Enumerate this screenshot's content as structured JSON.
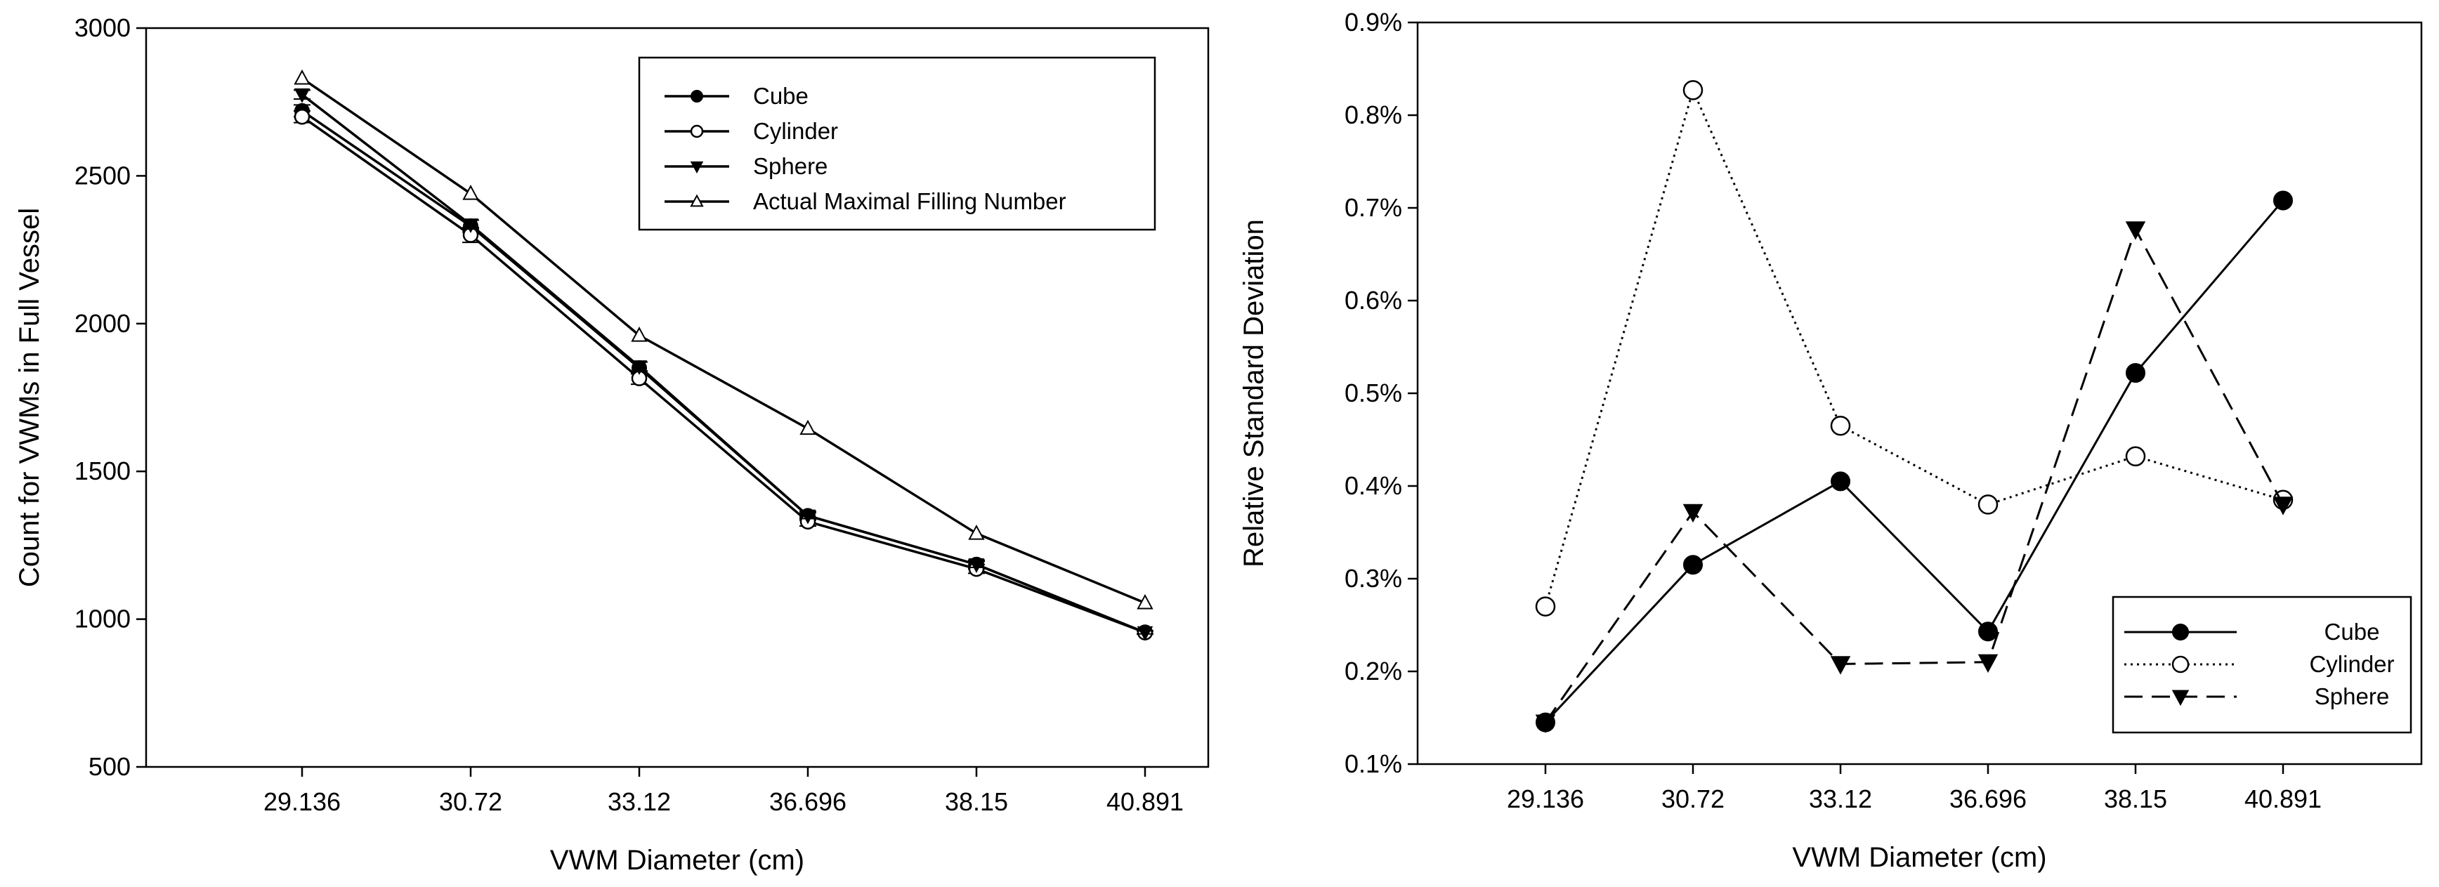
{
  "chart_data": [
    {
      "type": "line",
      "id": "count",
      "title": "",
      "xlabel": "VWM Diameter  (cm)",
      "ylabel": "Count for VWMs in Full Vessel",
      "categories": [
        "29.136",
        "30.72",
        "33.12",
        "36.696",
        "38.15",
        "40.891"
      ],
      "ylim": [
        500,
        3000
      ],
      "yticks": [
        500,
        1000,
        1500,
        2000,
        2500,
        3000
      ],
      "ytick_labels": [
        "500",
        "1000",
        "1500",
        "2000",
        "2500",
        "3000"
      ],
      "grid": false,
      "legend_position": "top-right",
      "series": [
        {
          "name": "Cube",
          "marker": "filled-circle",
          "dash": "solid",
          "values": [
            2720,
            2330,
            1850,
            1350,
            1185,
            955
          ],
          "errors": [
            20,
            20,
            20,
            15,
            15,
            5
          ]
        },
        {
          "name": "Cylinder",
          "marker": "open-circle",
          "dash": "solid",
          "values": [
            2700,
            2300,
            1815,
            1330,
            1170,
            955
          ],
          "errors": [
            20,
            25,
            20,
            15,
            15,
            5
          ]
        },
        {
          "name": "Sphere",
          "marker": "filled-triangle-down",
          "dash": "solid",
          "values": [
            2775,
            2335,
            1855,
            1350,
            1185,
            955
          ],
          "errors": [
            15,
            15,
            15,
            10,
            10,
            5
          ]
        },
        {
          "name": "Actual Maximal Filling Number",
          "marker": "open-triangle-up",
          "dash": "solid",
          "values": [
            2830,
            2440,
            1960,
            1645,
            1290,
            1055
          ],
          "errors": [
            0,
            0,
            0,
            0,
            0,
            0
          ]
        }
      ]
    },
    {
      "type": "line",
      "id": "rsd",
      "title": "",
      "xlabel": "VWM Diameter  (cm)",
      "ylabel": "Relative Standard Deviation",
      "categories": [
        "29.136",
        "30.72",
        "33.12",
        "36.696",
        "38.15",
        "40.891"
      ],
      "ylim": [
        0.1,
        0.9
      ],
      "yticks": [
        0.1,
        0.2,
        0.3,
        0.4,
        0.5,
        0.6,
        0.7,
        0.8,
        0.9
      ],
      "ytick_labels": [
        "0.1%",
        "0.2%",
        "0.3%",
        "0.4%",
        "0.5%",
        "0.6%",
        "0.7%",
        "0.8%",
        "0.9%"
      ],
      "grid": false,
      "legend_position": "bottom-right",
      "series": [
        {
          "name": "Cube",
          "marker": "filled-circle",
          "dash": "solid",
          "values": [
            0.145,
            0.315,
            0.405,
            0.243,
            0.522,
            0.708
          ]
        },
        {
          "name": "Cylinder",
          "marker": "open-circle",
          "dash": "dotted",
          "values": [
            0.27,
            0.827,
            0.465,
            0.38,
            0.432,
            0.385
          ]
        },
        {
          "name": "Sphere",
          "marker": "filled-triangle-down",
          "dash": "dashed",
          "values": [
            0.145,
            0.372,
            0.208,
            0.21,
            0.677,
            0.38
          ]
        }
      ]
    }
  ]
}
